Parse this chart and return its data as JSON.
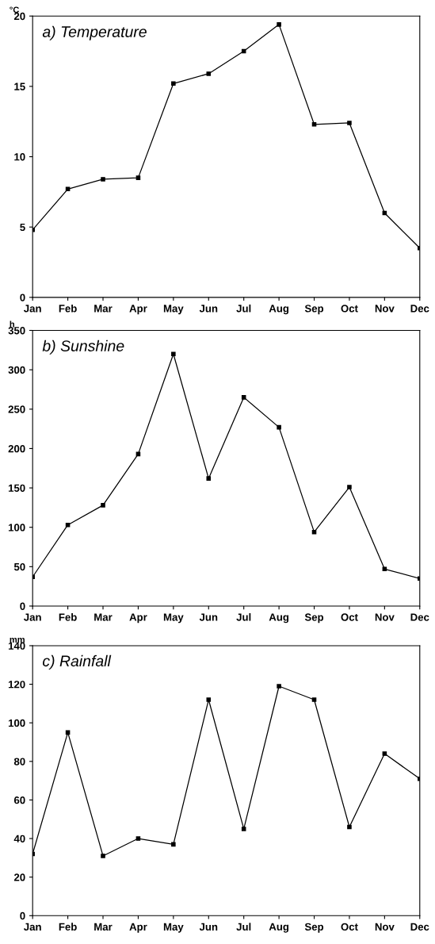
{
  "chart_data": [
    {
      "type": "line",
      "title": "a) Temperature",
      "ylabel": "°C",
      "categories": [
        "Jan",
        "Feb",
        "Mar",
        "Apr",
        "May",
        "Jun",
        "Jul",
        "Aug",
        "Sep",
        "Oct",
        "Nov",
        "Dec"
      ],
      "series": [
        {
          "color": "#000000",
          "values": [
            4.8,
            7.7,
            8.4,
            8.5,
            15.2,
            15.9,
            17.5,
            19.4,
            12.3,
            12.4,
            6.0,
            3.5
          ]
        }
      ],
      "ylim": [
        0,
        20
      ],
      "yticks": [
        0,
        5,
        10,
        15,
        20
      ],
      "marker": "square",
      "line_style": "solid"
    },
    {
      "type": "line",
      "title": "b) Sunshine",
      "ylabel": "h",
      "categories": [
        "Jan",
        "Feb",
        "Mar",
        "Apr",
        "May",
        "Jun",
        "Jul",
        "Aug",
        "Sep",
        "Oct",
        "Nov",
        "Dec"
      ],
      "series": [
        {
          "color": "#000000",
          "values": [
            37,
            103,
            128,
            193,
            320,
            162,
            265,
            227,
            94,
            151,
            47,
            35
          ]
        }
      ],
      "ylim": [
        0,
        350
      ],
      "yticks": [
        0,
        50,
        100,
        150,
        200,
        250,
        300,
        350
      ],
      "marker": "square",
      "line_style": "solid"
    },
    {
      "type": "line",
      "title": "c) Rainfall",
      "ylabel": "mm",
      "categories": [
        "Jan",
        "Feb",
        "Mar",
        "Apr",
        "May",
        "Jun",
        "Jul",
        "Aug",
        "Sep",
        "Oct",
        "Nov",
        "Dec"
      ],
      "series": [
        {
          "color": "#000000",
          "values": [
            32,
            95,
            31,
            40,
            37,
            112,
            45,
            119,
            112,
            46,
            84,
            71
          ]
        }
      ],
      "ylim": [
        0,
        140
      ],
      "yticks": [
        0,
        20,
        40,
        60,
        80,
        100,
        120,
        140
      ],
      "marker": "square",
      "line_style": "solid"
    }
  ]
}
